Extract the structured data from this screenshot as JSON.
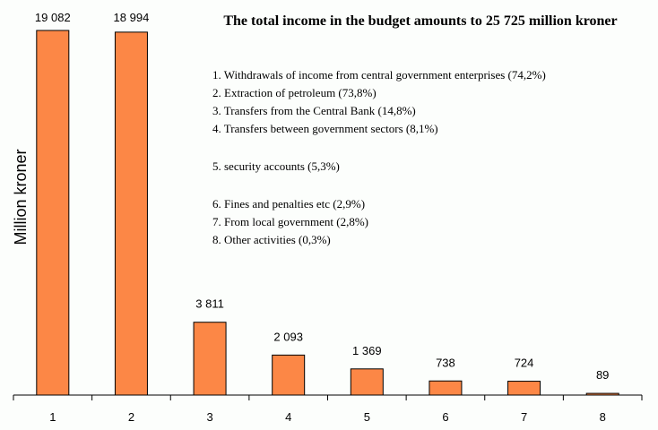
{
  "chart_data": {
    "type": "bar",
    "title": "The total income in the budget amounts to 25 725 million kroner",
    "ylabel": "Million kroner",
    "xlabel": "",
    "categories": [
      "1",
      "2",
      "3",
      "4",
      "5",
      "6",
      "7",
      "8"
    ],
    "values": [
      19082,
      18994,
      3811,
      2093,
      1369,
      738,
      724,
      89
    ],
    "value_labels": [
      "19 082",
      "18 994",
      "3 811",
      "2 093",
      "1 369",
      "738",
      "724",
      "89"
    ],
    "ylim": [
      0,
      19082
    ],
    "grid": false,
    "bar_color": "#fc8746",
    "annotations": [
      "1. Withdrawals of income from central government enterprises (74,2%)",
      "2. Extraction of petroleum (73,8%)",
      "3. Transfers from the Central Bank (14,8%)",
      "4. Transfers between government sectors (8,1%)",
      "5. security accounts (5,3%)",
      "6. Fines and penalties etc (2,9%)",
      "7. From local government (2,8%)",
      "8. Other activities (0,3%)"
    ]
  }
}
